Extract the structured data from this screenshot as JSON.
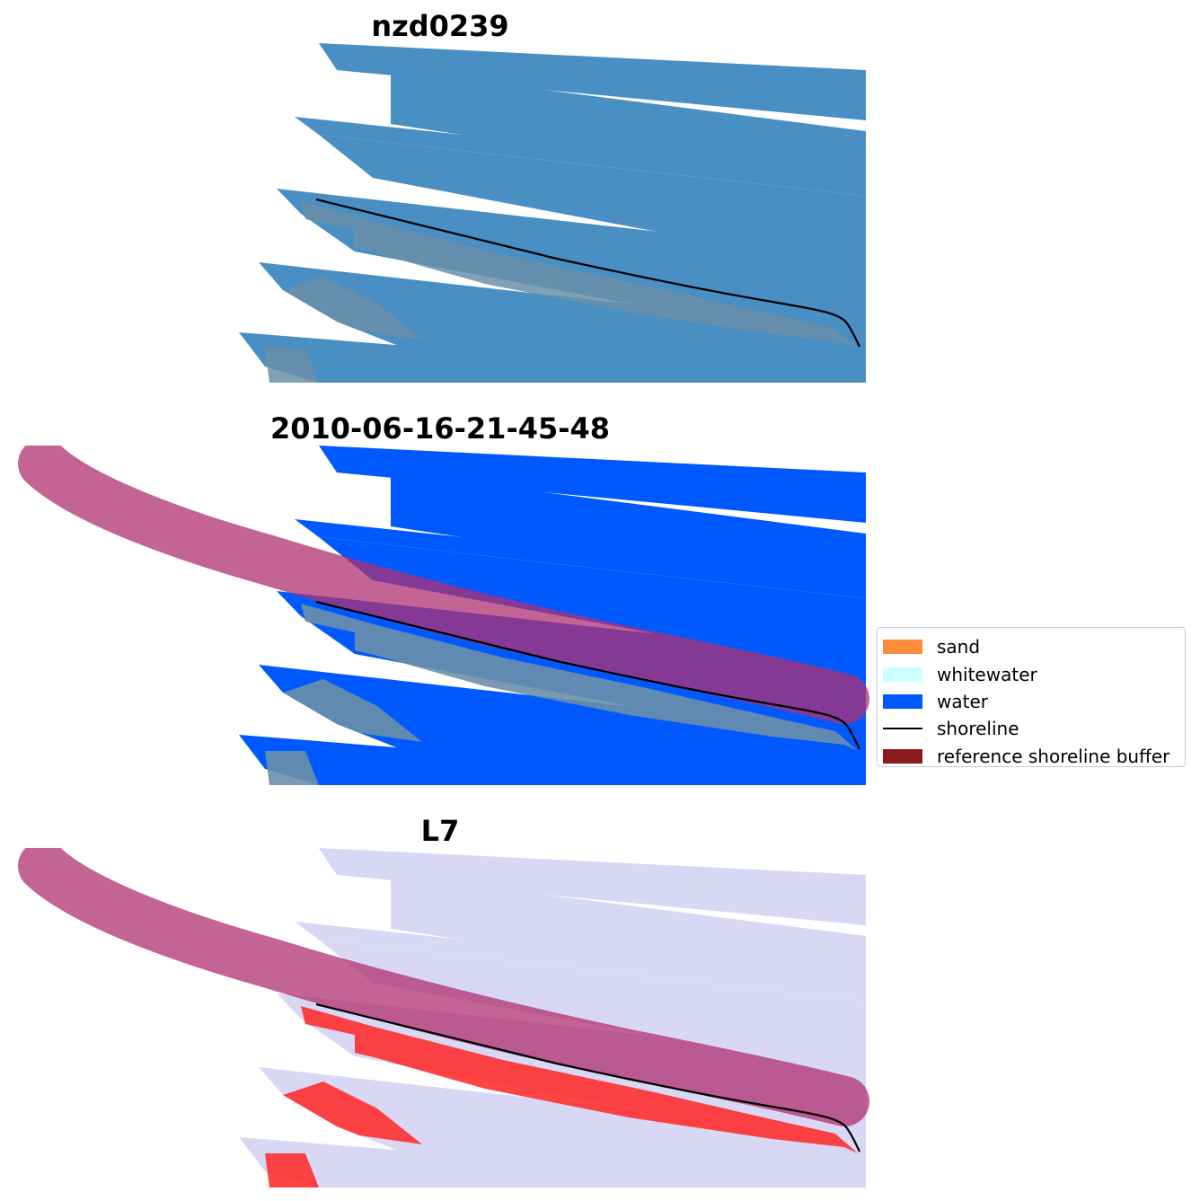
{
  "panels": [
    {
      "title": "nzd0239"
    },
    {
      "title": "2010-06-16-21-45-48"
    },
    {
      "title": "L7"
    }
  ],
  "legend": {
    "items": [
      {
        "label": "sand",
        "color": "#ff8c3a",
        "kind": "patch"
      },
      {
        "label": "whitewater",
        "color": "#ccffff",
        "kind": "patch"
      },
      {
        "label": "water",
        "color": "#0059ff",
        "kind": "patch"
      },
      {
        "label": "shoreline",
        "color": "#000000",
        "kind": "line"
      },
      {
        "label": "reference shoreline buffer",
        "color": "#8b1a1a",
        "kind": "patch"
      }
    ]
  },
  "colors": {
    "rgb_water": "#4a8fc4",
    "rgb_land": "#6a8fa8",
    "class_water": "#0059ff",
    "buffer": "#b03070",
    "mndwi_water": "#d8d8f4",
    "mndwi_land": "#ff3030",
    "shoreline": "#000000"
  }
}
